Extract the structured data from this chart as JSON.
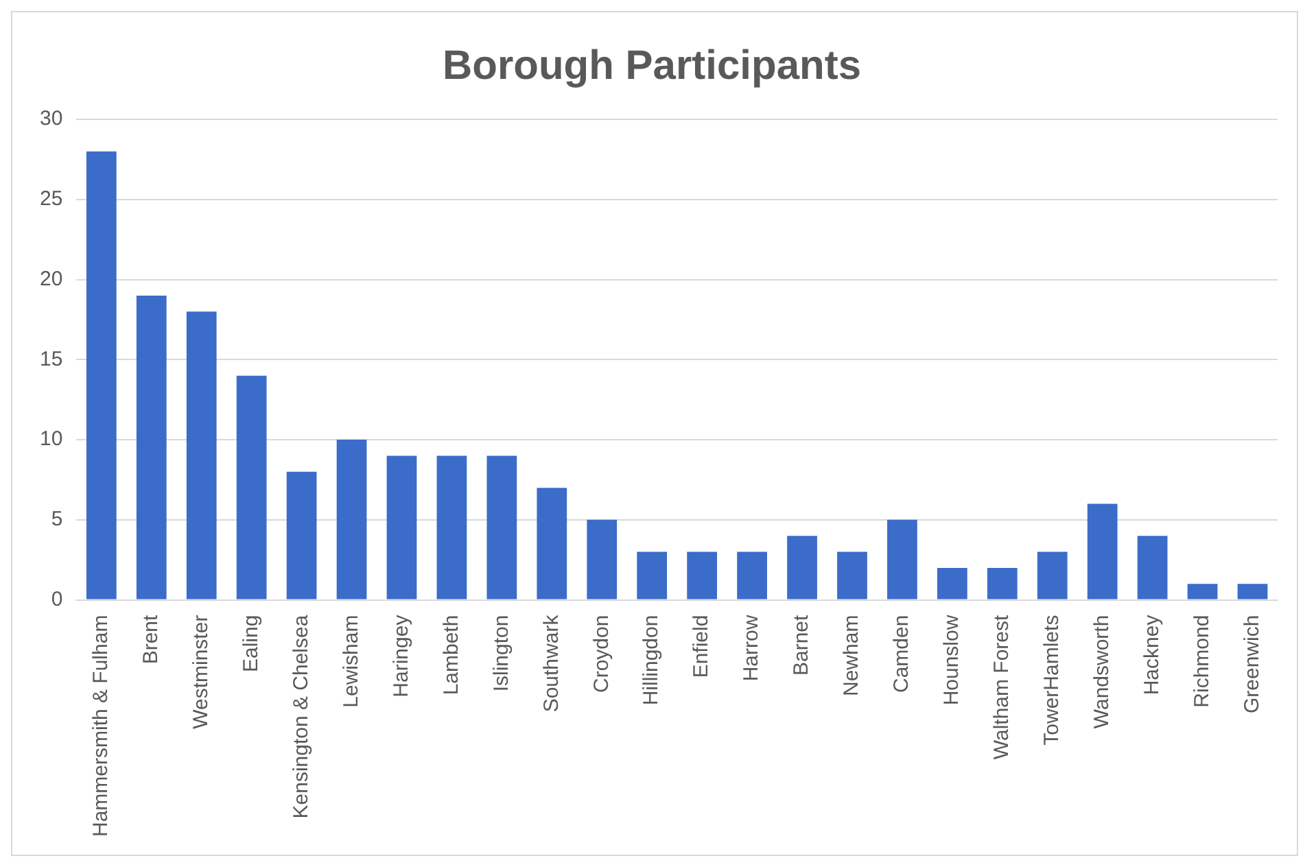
{
  "chart_data": {
    "type": "bar",
    "title": "Borough Participants",
    "categories": [
      "Hammersmith & Fulham",
      "Brent",
      "Westminster",
      "Ealing",
      "Kensington & Chelsea",
      "Lewisham",
      "Haringey",
      "Lambeth",
      "Islington",
      "Southwark",
      "Croydon",
      "Hillingdon",
      "Enfield",
      "Harrow",
      "Barnet",
      "Newham",
      "Camden",
      "Hounslow",
      "Waltham Forest",
      "TowerHamlets",
      "Wandsworth",
      "Hackney",
      "Richmond",
      "Greenwich"
    ],
    "values": [
      28,
      19,
      18,
      14,
      8,
      10,
      9,
      9,
      9,
      7,
      5,
      3,
      3,
      3,
      4,
      3,
      5,
      2,
      2,
      3,
      6,
      4,
      1,
      1
    ],
    "color": "#3b6cc9",
    "ylim": [
      0,
      30
    ],
    "yticks": [
      0,
      5,
      10,
      15,
      20,
      25,
      30
    ],
    "grid": "y",
    "legend": false
  }
}
